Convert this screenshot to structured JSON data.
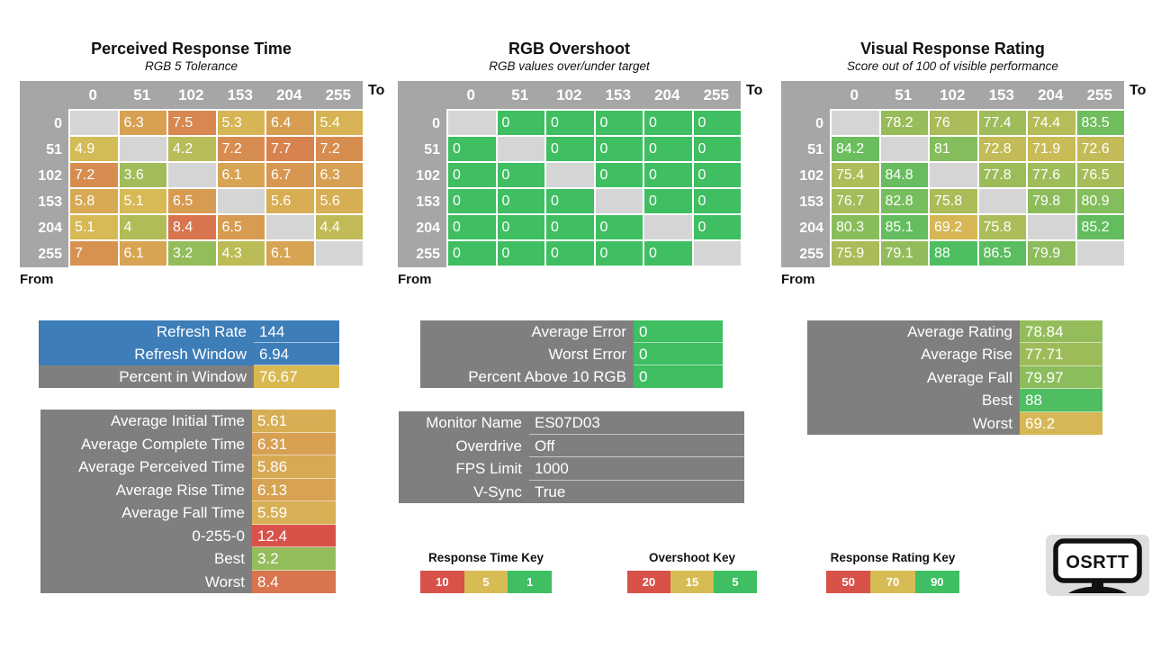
{
  "colors": {
    "green": "#3fbe62",
    "gold": "#d7bb55",
    "red": "#d8524a",
    "blue": "#3d7db8",
    "box_gray": "#7f7f7f",
    "header_gray": "#a6a6a6",
    "diagonal_gray": "#d5d5d5",
    "logo_bg": "#dedede"
  },
  "chart_data": [
    {
      "type": "heatmap",
      "title": "Perceived Response Time",
      "subtitle": "RGB 5 Tolerance",
      "x_label": "To",
      "y_label": "From",
      "x_ticks": [
        "0",
        "51",
        "102",
        "153",
        "204",
        "255"
      ],
      "y_ticks": [
        "0",
        "51",
        "102",
        "153",
        "204",
        "255"
      ],
      "rows": [
        [
          "",
          "6.3",
          "7.5",
          "5.3",
          "6.4",
          "5.4"
        ],
        [
          "4.9",
          "",
          "4.2",
          "7.2",
          "7.7",
          "7.2"
        ],
        [
          "7.2",
          "3.6",
          "",
          "6.1",
          "6.7",
          "6.3"
        ],
        [
          "5.8",
          "5.1",
          "6.5",
          "",
          "5.6",
          "5.6"
        ],
        [
          "5.1",
          "4",
          "8.4",
          "6.5",
          "",
          "4.4"
        ],
        [
          "7",
          "6.1",
          "3.2",
          "4.3",
          "6.1",
          ""
        ]
      ],
      "scale": {
        "good": 1,
        "mid": 5,
        "bad": 10
      }
    },
    {
      "type": "heatmap",
      "title": "RGB Overshoot",
      "subtitle": "RGB values over/under target",
      "x_label": "To",
      "y_label": "From",
      "x_ticks": [
        "0",
        "51",
        "102",
        "153",
        "204",
        "255"
      ],
      "y_ticks": [
        "0",
        "51",
        "102",
        "153",
        "204",
        "255"
      ],
      "rows": [
        [
          "",
          "0",
          "0",
          "0",
          "0",
          "0"
        ],
        [
          "0",
          "",
          "0",
          "0",
          "0",
          "0"
        ],
        [
          "0",
          "0",
          "",
          "0",
          "0",
          "0"
        ],
        [
          "0",
          "0",
          "0",
          "",
          "0",
          "0"
        ],
        [
          "0",
          "0",
          "0",
          "0",
          "",
          "0"
        ],
        [
          "0",
          "0",
          "0",
          "0",
          "0",
          ""
        ]
      ],
      "scale": {
        "good": 5,
        "mid": 15,
        "bad": 20
      }
    },
    {
      "type": "heatmap",
      "title": "Visual Response Rating",
      "subtitle": "Score out of 100 of visible performance",
      "x_label": "To",
      "y_label": "From",
      "x_ticks": [
        "0",
        "51",
        "102",
        "153",
        "204",
        "255"
      ],
      "y_ticks": [
        "0",
        "51",
        "102",
        "153",
        "204",
        "255"
      ],
      "rows": [
        [
          "",
          "78.2",
          "76",
          "77.4",
          "74.4",
          "83.5"
        ],
        [
          "84.2",
          "",
          "81",
          "72.8",
          "71.9",
          "72.6"
        ],
        [
          "75.4",
          "84.8",
          "",
          "77.8",
          "77.6",
          "76.5"
        ],
        [
          "76.7",
          "82.8",
          "75.8",
          "",
          "79.8",
          "80.9"
        ],
        [
          "80.3",
          "85.1",
          "69.2",
          "75.8",
          "",
          "85.2"
        ],
        [
          "75.9",
          "79.1",
          "88",
          "86.5",
          "79.9",
          ""
        ]
      ],
      "scale": {
        "good": 90,
        "mid": 70,
        "bad": 50
      }
    }
  ],
  "boxes": [
    {
      "id": "refresh",
      "rows": [
        {
          "label": "Refresh Rate",
          "value": "144",
          "label_bg": "#3d7db8",
          "value_bg": "#3d7db8"
        },
        {
          "label": "Refresh Window",
          "value": "6.94",
          "label_bg": "#3d7db8",
          "value_bg": "#3d7db8"
        },
        {
          "label": "Percent in Window",
          "value": "76.67",
          "label_bg": "#7f7f7f",
          "value_bg": "#d8b94f"
        }
      ]
    },
    {
      "id": "error",
      "rows": [
        {
          "label": "Average Error",
          "value": "0",
          "label_bg": "#7f7f7f",
          "value_bg": "#3fbe62"
        },
        {
          "label": "Worst Error",
          "value": "0",
          "label_bg": "#7f7f7f",
          "value_bg": "#3fbe62"
        },
        {
          "label": "Percent Above 10 RGB",
          "value": "0",
          "label_bg": "#7f7f7f",
          "value_bg": "#3fbe62"
        }
      ]
    },
    {
      "id": "rating",
      "rows": [
        {
          "label": "Average Rating",
          "value": "78.84",
          "label_bg": "#7f7f7f",
          "value_bg": "#94bc5b"
        },
        {
          "label": "Average Rise",
          "value": "77.71",
          "label_bg": "#7f7f7f",
          "value_bg": "#9cbc5a"
        },
        {
          "label": "Average Fall",
          "value": "79.97",
          "label_bg": "#7f7f7f",
          "value_bg": "#8bbd5c"
        },
        {
          "label": "Best",
          "value": "88",
          "label_bg": "#7f7f7f",
          "value_bg": "#4ebe61"
        },
        {
          "label": "Worst",
          "value": "69.2",
          "label_bg": "#7f7f7f",
          "value_bg": "#d7b755"
        }
      ]
    },
    {
      "id": "times",
      "rows": [
        {
          "label": "Average Initial Time",
          "value": "5.61",
          "label_bg": "#7f7f7f",
          "value_bg": "#d7ae54"
        },
        {
          "label": "Average Complete Time",
          "value": "6.31",
          "label_bg": "#7f7f7f",
          "value_bg": "#d7a052"
        },
        {
          "label": "Average Perceived Time",
          "value": "5.86",
          "label_bg": "#7f7f7f",
          "value_bg": "#d7a953"
        },
        {
          "label": "Average Rise Time",
          "value": "6.13",
          "label_bg": "#7f7f7f",
          "value_bg": "#d7a353"
        },
        {
          "label": "Average Fall Time",
          "value": "5.59",
          "label_bg": "#7f7f7f",
          "value_bg": "#d7af54"
        },
        {
          "label": "0-255-0",
          "value": "12.4",
          "label_bg": "#7f7f7f",
          "value_bg": "#d8524a"
        },
        {
          "label": "Best",
          "value": "3.2",
          "label_bg": "#7f7f7f",
          "value_bg": "#93bc5b"
        },
        {
          "label": "Worst",
          "value": "8.4",
          "label_bg": "#7f7f7f",
          "value_bg": "#d8744e"
        }
      ]
    },
    {
      "id": "monitor",
      "rows": [
        {
          "label": "Monitor Name",
          "value": "ES07D03",
          "label_bg": "#7f7f7f",
          "value_bg": "#7f7f7f"
        },
        {
          "label": "Overdrive",
          "value": "Off",
          "label_bg": "#7f7f7f",
          "value_bg": "#7f7f7f"
        },
        {
          "label": "FPS Limit",
          "value": "1000",
          "label_bg": "#7f7f7f",
          "value_bg": "#7f7f7f"
        },
        {
          "label": "V-Sync",
          "value": "True",
          "label_bg": "#7f7f7f",
          "value_bg": "#7f7f7f"
        }
      ]
    }
  ],
  "keys": [
    {
      "title": "Response Time Key",
      "items": [
        {
          "label": "10",
          "color": "#d8524a"
        },
        {
          "label": "5",
          "color": "#d7bb55"
        },
        {
          "label": "1",
          "color": "#3fbe62"
        }
      ]
    },
    {
      "title": "Overshoot Key",
      "items": [
        {
          "label": "20",
          "color": "#d8524a"
        },
        {
          "label": "15",
          "color": "#d7bb55"
        },
        {
          "label": "5",
          "color": "#3fbe62"
        }
      ]
    },
    {
      "title": "Response Rating Key",
      "items": [
        {
          "label": "50",
          "color": "#d8524a"
        },
        {
          "label": "70",
          "color": "#d7bb55"
        },
        {
          "label": "90",
          "color": "#3fbe62"
        }
      ]
    }
  ],
  "logo": {
    "text": "OSRTT"
  }
}
